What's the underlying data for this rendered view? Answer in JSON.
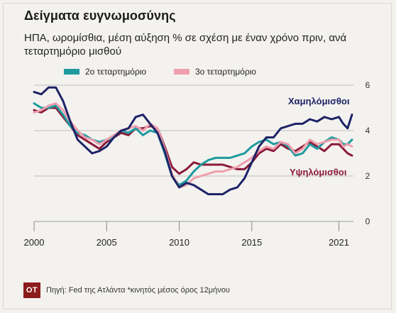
{
  "header": {
    "title": "Δείγματα ευγνωμοσύνης",
    "subtitle": "ΗΠΑ, ωρομίσθια, μέση αύξηση % σε σχέση με έναν χρόνο πριν, ανά τεταρτημόριο μισθού"
  },
  "footer": {
    "logo": "ΟΤ",
    "source": "Πηγή: Fed της Ατλάντα *κινητός μέσος όρος 12μήνου"
  },
  "colors": {
    "low": "#1d2366",
    "high": "#8b1a3a",
    "q2": "#1f9a9e",
    "q3": "#ef9fae",
    "logo": "#8c1c1c"
  },
  "chart_data": {
    "type": "line",
    "xlim": [
      2000,
      2022
    ],
    "ylim": [
      0,
      6
    ],
    "x_ticks": [
      2000,
      2005,
      2010,
      2015,
      2021
    ],
    "y_ticks": [
      0,
      2,
      4,
      6
    ],
    "grid": true,
    "legend": {
      "placement": "top",
      "items": [
        "2ο τεταρτημόριο",
        "3ο τεταρτημόριο"
      ]
    },
    "annotations": [
      "Χαμηλόμισθοι",
      "Υψηλόμισθοι"
    ],
    "series": [
      {
        "name": "Υψηλόμισθοι",
        "color": "#8b1a3a",
        "x": [
          2000,
          2000.5,
          2001,
          2001.5,
          2002,
          2002.5,
          2003,
          2003.5,
          2004,
          2004.5,
          2005,
          2005.5,
          2006,
          2006.5,
          2007,
          2007.5,
          2008,
          2008.5,
          2009,
          2009.5,
          2010,
          2010.5,
          2011,
          2011.5,
          2012,
          2012.5,
          2013,
          2013.5,
          2014,
          2014.5,
          2015,
          2015.5,
          2016,
          2016.5,
          2017,
          2017.5,
          2018,
          2018.5,
          2019,
          2019.5,
          2020,
          2020.5,
          2021,
          2021.3,
          2021.6,
          2021.9
        ],
        "values": [
          4.9,
          4.8,
          5.0,
          5.0,
          4.6,
          4.2,
          3.8,
          3.6,
          3.4,
          3.2,
          3.5,
          3.7,
          3.9,
          3.8,
          4.1,
          4.1,
          4.2,
          4.1,
          3.3,
          2.4,
          2.1,
          2.3,
          2.6,
          2.5,
          2.5,
          2.5,
          2.5,
          2.4,
          2.3,
          2.3,
          2.6,
          3.0,
          3.2,
          3.1,
          3.4,
          3.2,
          3.1,
          3.3,
          3.5,
          3.3,
          3.1,
          3.4,
          3.4,
          3.2,
          3.0,
          2.9
        ]
      },
      {
        "name": "2ο τεταρτημόριο",
        "color": "#1f9a9e",
        "x": [
          2000,
          2000.5,
          2001,
          2001.5,
          2002,
          2002.5,
          2003,
          2003.5,
          2004,
          2004.5,
          2005,
          2005.5,
          2006,
          2006.5,
          2007,
          2007.5,
          2008,
          2008.5,
          2009,
          2009.5,
          2010,
          2010.5,
          2011,
          2011.5,
          2012,
          2012.5,
          2013,
          2013.5,
          2014,
          2014.5,
          2015,
          2015.5,
          2016,
          2016.5,
          2017,
          2017.5,
          2018,
          2018.5,
          2019,
          2019.5,
          2020,
          2020.5,
          2021,
          2021.3,
          2021.6,
          2021.9
        ],
        "values": [
          5.2,
          5.0,
          5.0,
          5.1,
          4.7,
          4.2,
          3.9,
          3.8,
          3.6,
          3.5,
          3.6,
          3.7,
          4.0,
          3.9,
          4.1,
          3.8,
          4.0,
          3.9,
          3.0,
          2.0,
          1.6,
          1.8,
          2.2,
          2.5,
          2.7,
          2.8,
          2.8,
          2.8,
          2.9,
          3.0,
          3.3,
          3.5,
          3.6,
          3.4,
          3.5,
          3.3,
          2.9,
          3.0,
          3.4,
          3.2,
          3.5,
          3.7,
          3.6,
          3.4,
          3.4,
          3.6
        ]
      },
      {
        "name": "3ο τεταρτημόριο",
        "color": "#ef9fae",
        "x": [
          2000,
          2000.5,
          2001,
          2001.5,
          2002,
          2002.5,
          2003,
          2003.5,
          2004,
          2004.5,
          2005,
          2005.5,
          2006,
          2006.5,
          2007,
          2007.5,
          2008,
          2008.5,
          2009,
          2009.5,
          2010,
          2010.5,
          2011,
          2011.5,
          2012,
          2012.5,
          2013,
          2013.5,
          2014,
          2014.5,
          2015,
          2015.5,
          2016,
          2016.5,
          2017,
          2017.5,
          2018,
          2018.5,
          2019,
          2019.5,
          2020,
          2020.5,
          2021,
          2021.3,
          2021.6,
          2021.9
        ],
        "values": [
          4.8,
          4.9,
          5.1,
          5.2,
          4.9,
          4.4,
          4.0,
          3.7,
          3.6,
          3.4,
          3.6,
          3.8,
          4.0,
          4.1,
          4.2,
          4.0,
          4.3,
          4.1,
          3.2,
          2.1,
          1.5,
          1.6,
          1.9,
          2.0,
          2.1,
          2.2,
          2.2,
          2.3,
          2.4,
          2.6,
          2.8,
          3.1,
          3.3,
          3.2,
          3.5,
          3.4,
          3.0,
          3.2,
          3.6,
          3.4,
          3.5,
          3.6,
          3.6,
          3.3,
          3.4,
          3.3
        ]
      },
      {
        "name": "Χαμηλόμισθοι",
        "color": "#1d2366",
        "x": [
          2000,
          2000.5,
          2001,
          2001.5,
          2002,
          2002.5,
          2003,
          2003.5,
          2004,
          2004.5,
          2005,
          2005.5,
          2006,
          2006.5,
          2007,
          2007.5,
          2008,
          2008.5,
          2009,
          2009.5,
          2010,
          2010.5,
          2011,
          2011.5,
          2012,
          2012.5,
          2013,
          2013.5,
          2014,
          2014.5,
          2015,
          2015.5,
          2016,
          2016.5,
          2017,
          2017.5,
          2018,
          2018.5,
          2019,
          2019.5,
          2020,
          2020.5,
          2021,
          2021.3,
          2021.6,
          2021.9
        ],
        "values": [
          5.7,
          5.6,
          5.9,
          5.9,
          5.3,
          4.4,
          3.6,
          3.3,
          3.0,
          3.1,
          3.3,
          3.7,
          4.0,
          4.1,
          4.6,
          4.7,
          4.3,
          3.9,
          3.1,
          2.0,
          1.5,
          1.7,
          1.6,
          1.4,
          1.2,
          1.2,
          1.2,
          1.4,
          1.5,
          1.9,
          2.6,
          3.3,
          3.7,
          3.7,
          4.1,
          4.2,
          4.3,
          4.3,
          4.5,
          4.4,
          4.6,
          4.5,
          4.6,
          4.3,
          4.1,
          4.7
        ]
      }
    ]
  }
}
